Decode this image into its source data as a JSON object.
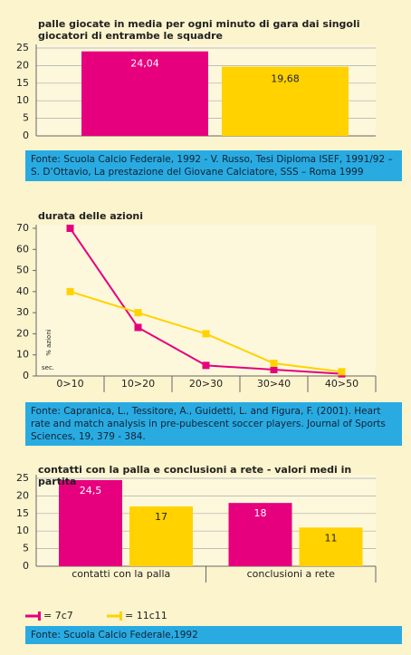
{
  "chart_data": [
    {
      "type": "bar",
      "title": "palle giocate in media per ogni minuto di gara dai singoli giocatori di entrambe le squadre",
      "values": [
        24.04,
        19.68
      ],
      "value_labels": [
        "24,04",
        "19,68"
      ],
      "colors": [
        "#e6007e",
        "#ffd200"
      ],
      "ylim": [
        0,
        25
      ],
      "yticks": [
        0,
        5,
        10,
        15,
        20,
        25
      ],
      "grid": true,
      "source": "Fonte: Scuola Calcio Federale, 1992 - V. Russo, Tesi Diploma ISEF, 1991/92 – S. D’Ottavio, La prestazione del Giovane Calciatore, SSS – Roma 1999"
    },
    {
      "type": "line",
      "title": "durata delle azioni",
      "categories": [
        "0>10",
        "10>20",
        "20>30",
        "30>40",
        "40>50"
      ],
      "series": [
        {
          "color": "#e6007e",
          "values": [
            70,
            23,
            5,
            3,
            1
          ]
        },
        {
          "color": "#ffd200",
          "values": [
            40,
            30,
            20,
            6,
            2
          ]
        }
      ],
      "ylim": [
        0,
        70
      ],
      "yticks": [
        0,
        10,
        20,
        30,
        40,
        50,
        60,
        70
      ],
      "grid": false,
      "ylabel": "% azioni",
      "xlabel": "sec.",
      "source": "Fonte: Capranica, L., Tessitore, A., Guidetti, L. and Figura, F. (2001). Heart rate and match analysis in pre-pubescent soccer players. Journal of Sports Sciences, 19, 379 - 384."
    },
    {
      "type": "grouped_bar",
      "title": "contatti con la palla e conclusioni a rete - valori medi in partita",
      "categories": [
        "contatti con la palla",
        "conclusioni a rete"
      ],
      "series": [
        {
          "name": "= 7c7",
          "color": "#e6007e",
          "values": [
            24.5,
            18
          ],
          "value_labels": [
            "24,5",
            "18"
          ]
        },
        {
          "name": "= 11c11",
          "color": "#ffd200",
          "values": [
            17,
            11
          ]
        }
      ],
      "ylim": [
        0,
        25
      ],
      "yticks": [
        0,
        5,
        10,
        15,
        20,
        25
      ],
      "grid": true,
      "source": "Fonte: Scuola Calcio Federale,1992"
    }
  ]
}
